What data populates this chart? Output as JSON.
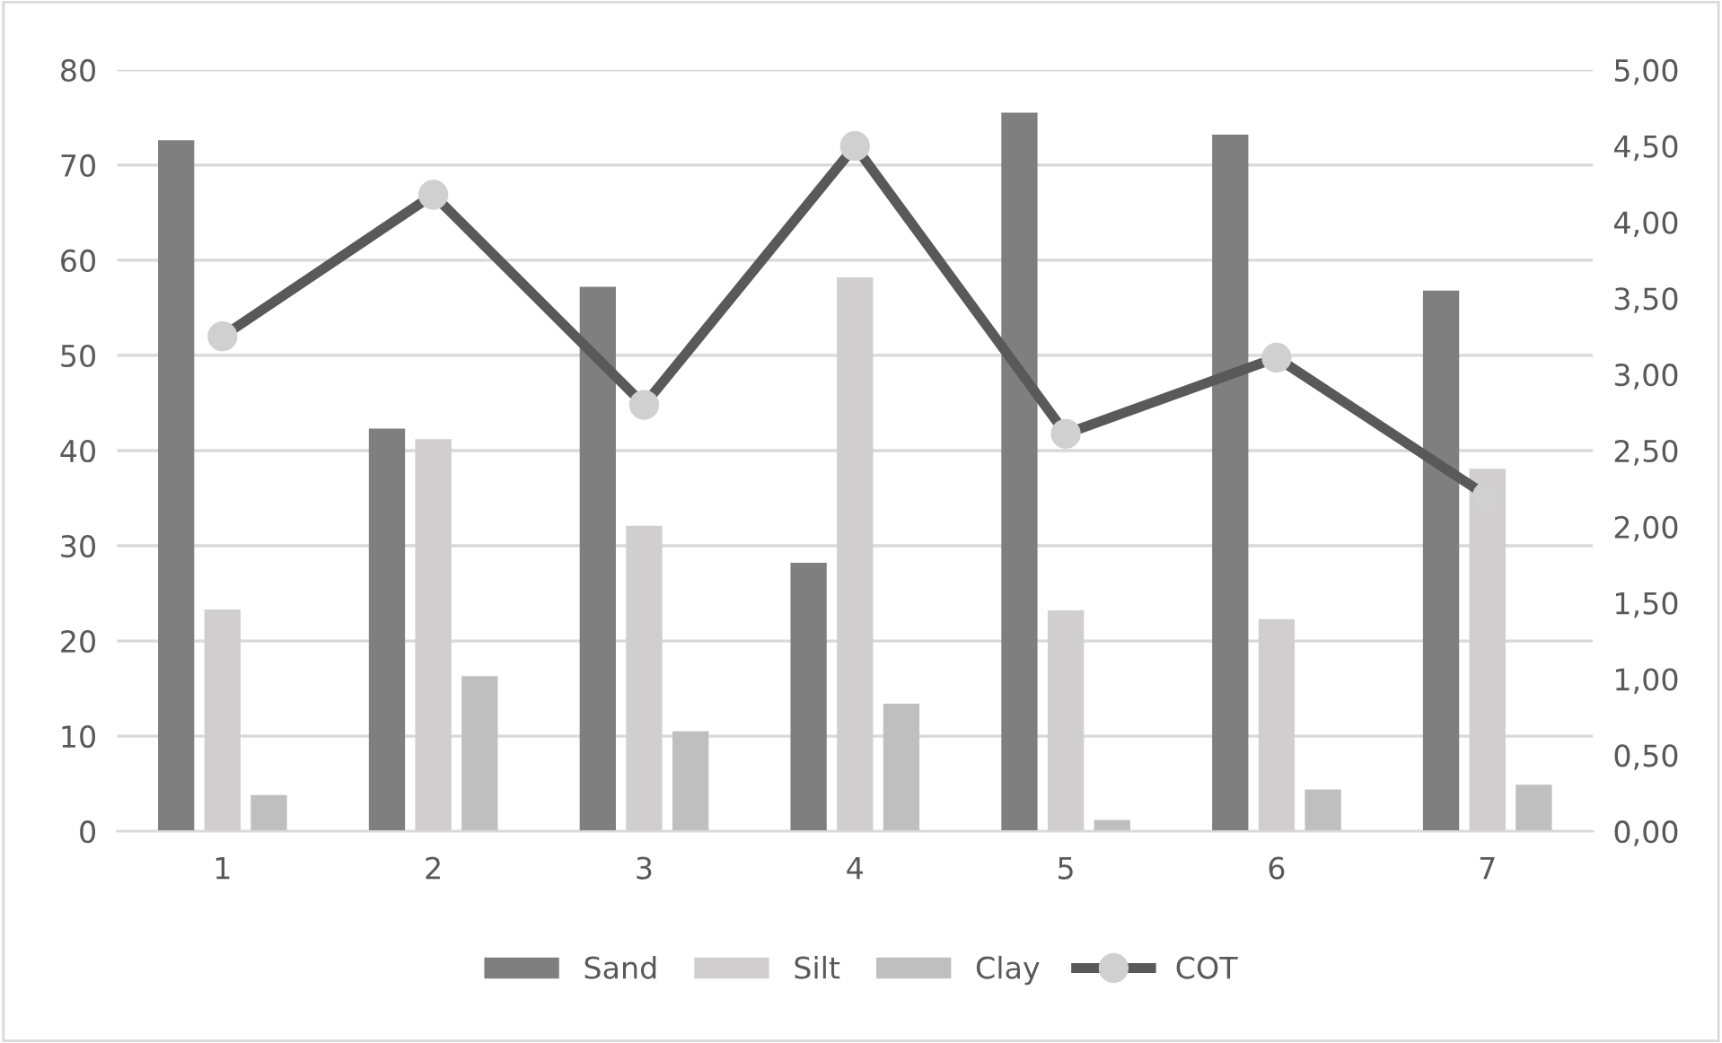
{
  "chart_data": {
    "type": "bar",
    "categories": [
      "1",
      "2",
      "3",
      "4",
      "5",
      "6",
      "7"
    ],
    "series": [
      {
        "name": "Sand",
        "color": "#7f7f7f",
        "values": [
          72.6,
          42.3,
          57.2,
          28.2,
          75.5,
          73.2,
          56.8
        ]
      },
      {
        "name": "Silt",
        "color": "#d0cece",
        "values": [
          23.3,
          41.2,
          32.1,
          58.2,
          23.2,
          22.3,
          38.1
        ]
      },
      {
        "name": "Clay",
        "color": "#bfbfbf",
        "values": [
          3.8,
          16.3,
          10.5,
          13.4,
          1.2,
          4.4,
          4.9
        ]
      },
      {
        "name": "COT",
        "type": "line",
        "axis": "y2",
        "color": "#595959",
        "marker": "circle",
        "values": [
          3.25,
          4.18,
          2.8,
          4.5,
          2.61,
          3.11,
          2.2
        ]
      }
    ],
    "ylim": [
      0,
      80
    ],
    "yticks": [
      0,
      10,
      20,
      30,
      40,
      50,
      60,
      70,
      80
    ],
    "y2lim": [
      0,
      5
    ],
    "y2ticks": [
      {
        "value": 0,
        "label": "0,00"
      },
      {
        "value": 0.5,
        "label": "0,50"
      },
      {
        "value": 1,
        "label": "1,00"
      },
      {
        "value": 1.5,
        "label": "1,50"
      },
      {
        "value": 2,
        "label": "2,00"
      },
      {
        "value": 2.5,
        "label": "2,50"
      },
      {
        "value": 3,
        "label": "3,00"
      },
      {
        "value": 3.5,
        "label": "3,50"
      },
      {
        "value": 4,
        "label": "4,00"
      },
      {
        "value": 4.5,
        "label": "4,50"
      },
      {
        "value": 5,
        "label": "5,00"
      }
    ],
    "grid": "y",
    "legend": "bottom"
  }
}
